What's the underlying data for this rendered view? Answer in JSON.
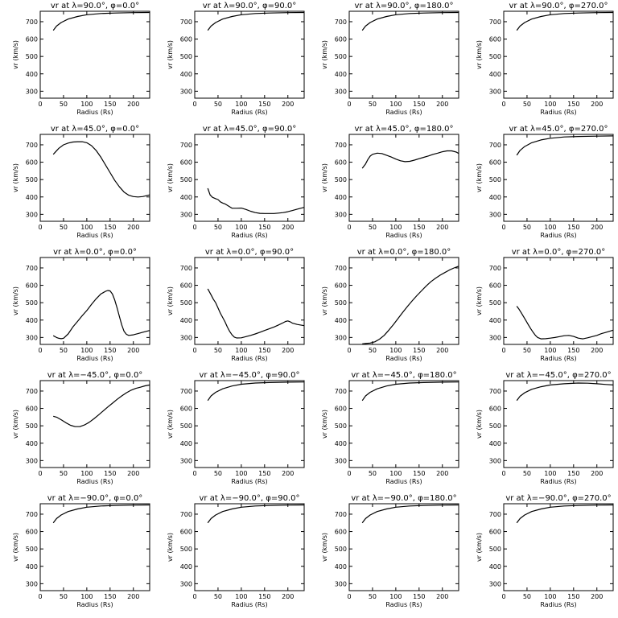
{
  "xlabel": "Radius (Rs)",
  "ylabel": "vr (km/s)",
  "chart_data": [
    {
      "type": "line",
      "title": "vr at λ=90.0°, φ=0.0°",
      "xlabel": "Radius (Rs)",
      "ylabel": "vr (km/s)",
      "xlim": [
        0,
        235
      ],
      "ylim": [
        260,
        760
      ],
      "x": [
        28,
        35,
        45,
        60,
        80,
        100,
        130,
        160,
        200,
        235
      ],
      "y": [
        650,
        675,
        695,
        715,
        730,
        740,
        747,
        750,
        752,
        753
      ]
    },
    {
      "type": "line",
      "title": "vr at λ=90.0°, φ=90.0°",
      "xlabel": "Radius (Rs)",
      "ylabel": "vr (km/s)",
      "xlim": [
        0,
        235
      ],
      "ylim": [
        260,
        760
      ],
      "x": [
        28,
        35,
        45,
        60,
        80,
        100,
        130,
        160,
        200,
        235
      ],
      "y": [
        650,
        675,
        695,
        715,
        730,
        740,
        747,
        750,
        752,
        753
      ]
    },
    {
      "type": "line",
      "title": "vr at λ=90.0°, φ=180.0°",
      "xlabel": "Radius (Rs)",
      "ylabel": "vr (km/s)",
      "xlim": [
        0,
        235
      ],
      "ylim": [
        260,
        760
      ],
      "x": [
        28,
        35,
        45,
        60,
        80,
        100,
        130,
        160,
        200,
        235
      ],
      "y": [
        650,
        675,
        695,
        715,
        730,
        740,
        747,
        750,
        752,
        753
      ]
    },
    {
      "type": "line",
      "title": "vr at λ=90.0°, φ=270.0°",
      "xlabel": "Radius (Rs)",
      "ylabel": "vr (km/s)",
      "xlim": [
        0,
        235
      ],
      "ylim": [
        260,
        760
      ],
      "x": [
        28,
        35,
        45,
        60,
        80,
        100,
        130,
        160,
        200,
        235
      ],
      "y": [
        650,
        675,
        695,
        715,
        730,
        740,
        747,
        750,
        752,
        753
      ]
    },
    {
      "type": "line",
      "title": "vr at λ=45.0°, φ=0.0°",
      "xlabel": "Radius (Rs)",
      "ylabel": "vr (km/s)",
      "xlim": [
        0,
        235
      ],
      "ylim": [
        260,
        760
      ],
      "x": [
        28,
        40,
        50,
        60,
        70,
        80,
        90,
        100,
        110,
        120,
        130,
        140,
        150,
        160,
        170,
        180,
        190,
        200,
        210,
        220,
        235
      ],
      "y": [
        645,
        680,
        700,
        710,
        716,
        718,
        718,
        712,
        695,
        668,
        630,
        585,
        540,
        495,
        458,
        428,
        410,
        402,
        400,
        402,
        412
      ]
    },
    {
      "type": "line",
      "title": "vr at λ=45.0°, φ=90.0°",
      "xlabel": "Radius (Rs)",
      "ylabel": "vr (km/s)",
      "xlim": [
        0,
        235
      ],
      "ylim": [
        260,
        760
      ],
      "x": [
        28,
        33,
        38,
        45,
        50,
        55,
        60,
        65,
        70,
        80,
        90,
        100,
        110,
        120,
        130,
        140,
        150,
        160,
        170,
        180,
        190,
        200,
        210,
        220,
        235
      ],
      "y": [
        450,
        412,
        398,
        390,
        385,
        372,
        365,
        360,
        352,
        335,
        335,
        336,
        328,
        318,
        310,
        306,
        305,
        305,
        305,
        307,
        310,
        315,
        322,
        330,
        340
      ]
    },
    {
      "type": "line",
      "title": "vr at λ=45.0°, φ=180.0°",
      "xlabel": "Radius (Rs)",
      "ylabel": "vr (km/s)",
      "xlim": [
        0,
        235
      ],
      "ylim": [
        260,
        760
      ],
      "x": [
        28,
        35,
        40,
        45,
        50,
        60,
        70,
        80,
        90,
        100,
        110,
        120,
        130,
        140,
        150,
        160,
        170,
        180,
        190,
        200,
        210,
        220,
        230,
        235
      ],
      "y": [
        565,
        590,
        615,
        635,
        645,
        652,
        650,
        640,
        630,
        618,
        608,
        603,
        605,
        612,
        620,
        628,
        636,
        645,
        652,
        660,
        665,
        665,
        658,
        650
      ]
    },
    {
      "type": "line",
      "title": "vr at λ=45.0°, φ=270.0°",
      "xlabel": "Radius (Rs)",
      "ylabel": "vr (km/s)",
      "xlim": [
        0,
        235
      ],
      "ylim": [
        260,
        760
      ],
      "x": [
        28,
        35,
        45,
        60,
        80,
        100,
        130,
        160,
        200,
        235
      ],
      "y": [
        640,
        668,
        690,
        712,
        728,
        738,
        745,
        748,
        750,
        751
      ]
    },
    {
      "type": "line",
      "title": "vr at λ=0.0°, φ=0.0°",
      "xlabel": "Radius (Rs)",
      "ylabel": "vr (km/s)",
      "xlim": [
        0,
        235
      ],
      "ylim": [
        260,
        760
      ],
      "x": [
        28,
        35,
        40,
        45,
        50,
        60,
        70,
        80,
        90,
        100,
        110,
        120,
        130,
        140,
        145,
        150,
        155,
        160,
        165,
        170,
        175,
        180,
        185,
        190,
        200,
        210,
        220,
        235
      ],
      "y": [
        310,
        300,
        295,
        293,
        295,
        320,
        360,
        392,
        425,
        455,
        490,
        522,
        550,
        565,
        570,
        568,
        550,
        515,
        470,
        420,
        372,
        335,
        318,
        312,
        315,
        322,
        330,
        340
      ]
    },
    {
      "type": "line",
      "title": "vr at λ=0.0°, φ=90.0°",
      "xlabel": "Radius (Rs)",
      "ylabel": "vr (km/s)",
      "xlim": [
        0,
        235
      ],
      "ylim": [
        260,
        760
      ],
      "x": [
        28,
        35,
        40,
        45,
        50,
        55,
        60,
        65,
        70,
        75,
        80,
        85,
        90,
        100,
        110,
        120,
        130,
        140,
        150,
        160,
        170,
        180,
        190,
        195,
        200,
        205,
        210,
        220,
        235
      ],
      "y": [
        580,
        545,
        520,
        500,
        470,
        440,
        415,
        390,
        360,
        335,
        315,
        302,
        297,
        298,
        305,
        312,
        320,
        330,
        340,
        350,
        360,
        372,
        385,
        392,
        395,
        390,
        382,
        375,
        368
      ]
    },
    {
      "type": "line",
      "title": "vr at λ=0.0°, φ=180.0°",
      "xlabel": "Radius (Rs)",
      "ylabel": "vr (km/s)",
      "xlim": [
        0,
        235
      ],
      "ylim": [
        260,
        760
      ],
      "x": [
        28,
        35,
        45,
        55,
        65,
        75,
        85,
        95,
        105,
        115,
        125,
        135,
        145,
        155,
        165,
        175,
        185,
        195,
        205,
        215,
        225,
        235
      ],
      "y": [
        263,
        265,
        268,
        275,
        290,
        312,
        342,
        375,
        410,
        445,
        478,
        510,
        540,
        568,
        595,
        620,
        640,
        658,
        673,
        688,
        700,
        710
      ]
    },
    {
      "type": "line",
      "title": "vr at λ=0.0°, φ=270.0°",
      "xlabel": "Radius (Rs)",
      "ylabel": "vr (km/s)",
      "xlim": [
        0,
        235
      ],
      "ylim": [
        260,
        760
      ],
      "x": [
        28,
        33,
        38,
        43,
        48,
        53,
        58,
        63,
        68,
        73,
        80,
        90,
        100,
        110,
        120,
        130,
        140,
        150,
        160,
        170,
        180,
        190,
        200,
        210,
        220,
        235
      ],
      "y": [
        480,
        462,
        440,
        418,
        395,
        372,
        350,
        330,
        312,
        300,
        292,
        293,
        296,
        300,
        305,
        310,
        312,
        306,
        296,
        292,
        298,
        305,
        312,
        322,
        330,
        342
      ]
    },
    {
      "type": "line",
      "title": "vr at λ=−45.0°, φ=0.0°",
      "xlabel": "Radius (Rs)",
      "ylabel": "vr (km/s)",
      "xlim": [
        0,
        235
      ],
      "ylim": [
        260,
        760
      ],
      "x": [
        28,
        35,
        45,
        55,
        65,
        75,
        85,
        95,
        105,
        115,
        125,
        135,
        145,
        155,
        165,
        175,
        185,
        195,
        205,
        215,
        225,
        235
      ],
      "y": [
        555,
        550,
        535,
        518,
        503,
        495,
        495,
        505,
        520,
        540,
        562,
        585,
        608,
        630,
        652,
        672,
        690,
        705,
        715,
        722,
        730,
        735
      ]
    },
    {
      "type": "line",
      "title": "vr at λ=−45.0°, φ=90.0°",
      "xlabel": "Radius (Rs)",
      "ylabel": "vr (km/s)",
      "xlim": [
        0,
        235
      ],
      "ylim": [
        260,
        760
      ],
      "x": [
        28,
        35,
        45,
        60,
        80,
        100,
        130,
        160,
        200,
        235
      ],
      "y": [
        645,
        672,
        693,
        713,
        729,
        739,
        746,
        749,
        751,
        752
      ]
    },
    {
      "type": "line",
      "title": "vr at λ=−45.0°, φ=180.0°",
      "xlabel": "Radius (Rs)",
      "ylabel": "vr (km/s)",
      "xlim": [
        0,
        235
      ],
      "ylim": [
        260,
        760
      ],
      "x": [
        28,
        35,
        45,
        60,
        80,
        100,
        130,
        160,
        200,
        235
      ],
      "y": [
        645,
        672,
        693,
        713,
        729,
        739,
        746,
        749,
        751,
        752
      ]
    },
    {
      "type": "line",
      "title": "vr at λ=−45.0°, φ=270.0°",
      "xlabel": "Radius (Rs)",
      "ylabel": "vr (km/s)",
      "xlim": [
        0,
        235
      ],
      "ylim": [
        260,
        760
      ],
      "x": [
        28,
        35,
        45,
        60,
        80,
        100,
        130,
        160,
        180,
        200,
        220,
        235
      ],
      "y": [
        645,
        670,
        690,
        710,
        725,
        735,
        742,
        746,
        745,
        742,
        738,
        735
      ]
    },
    {
      "type": "line",
      "title": "vr at λ=−90.0°, φ=0.0°",
      "xlabel": "Radius (Rs)",
      "ylabel": "vr (km/s)",
      "xlim": [
        0,
        235
      ],
      "ylim": [
        260,
        760
      ],
      "x": [
        28,
        35,
        45,
        60,
        80,
        100,
        130,
        160,
        200,
        235
      ],
      "y": [
        650,
        675,
        695,
        715,
        730,
        740,
        747,
        750,
        752,
        753
      ]
    },
    {
      "type": "line",
      "title": "vr at λ=−90.0°, φ=90.0°",
      "xlabel": "Radius (Rs)",
      "ylabel": "vr (km/s)",
      "xlim": [
        0,
        235
      ],
      "ylim": [
        260,
        760
      ],
      "x": [
        28,
        35,
        45,
        60,
        80,
        100,
        130,
        160,
        200,
        235
      ],
      "y": [
        650,
        675,
        695,
        715,
        730,
        740,
        747,
        750,
        752,
        753
      ]
    },
    {
      "type": "line",
      "title": "vr at λ=−90.0°, φ=180.0°",
      "xlabel": "Radius (Rs)",
      "ylabel": "vr (km/s)",
      "xlim": [
        0,
        235
      ],
      "ylim": [
        260,
        760
      ],
      "x": [
        28,
        35,
        45,
        60,
        80,
        100,
        130,
        160,
        200,
        235
      ],
      "y": [
        650,
        675,
        695,
        715,
        730,
        740,
        747,
        750,
        752,
        753
      ]
    },
    {
      "type": "line",
      "title": "vr at λ=−90.0°, φ=270.0°",
      "xlabel": "Radius (Rs)",
      "ylabel": "vr (km/s)",
      "xlim": [
        0,
        235
      ],
      "ylim": [
        260,
        760
      ],
      "x": [
        28,
        35,
        45,
        60,
        80,
        100,
        130,
        160,
        200,
        235
      ],
      "y": [
        650,
        675,
        695,
        715,
        730,
        740,
        747,
        750,
        752,
        753
      ]
    }
  ],
  "yticks": [
    300,
    400,
    500,
    600,
    700
  ],
  "xticks": [
    0,
    50,
    100,
    150,
    200
  ]
}
